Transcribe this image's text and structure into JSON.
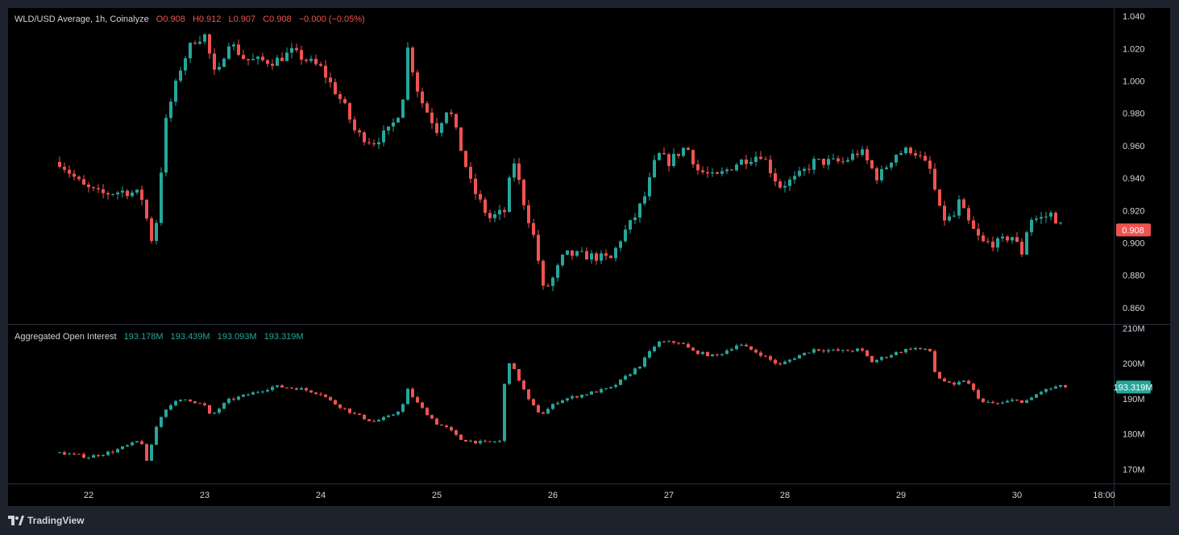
{
  "header": {
    "title": "WLD/USD Average, 1h, Coinalyze",
    "open": "O0.908",
    "high": "H0.912",
    "low": "L0.907",
    "close": "C0.908",
    "change": "−0.000 (−0.05%)"
  },
  "oi_header": {
    "title": "Aggregated Open Interest",
    "values": [
      "193.178M",
      "193.439M",
      "193.093M",
      "193.319M"
    ]
  },
  "price_badge": "0.908",
  "oi_badge": "193.319M",
  "branding": "TradingView",
  "colors": {
    "up": "#26a69a",
    "down": "#ef5350",
    "background": "#000000",
    "frame": "#1e222d"
  },
  "chart_data": [
    {
      "type": "candlestick",
      "title": "WLD/USD Average, 1h, Coinalyze",
      "ylim": [
        0.85,
        1.045
      ],
      "y_ticks": [
        "1.040",
        "1.020",
        "1.000",
        "0.980",
        "0.960",
        "0.940",
        "0.920",
        "0.900",
        "0.880",
        "0.860"
      ],
      "x_tick_labels": [
        "22",
        "23",
        "24",
        "25",
        "26",
        "27",
        "28",
        "29",
        "30",
        "18:00"
      ],
      "last_value": 0.908,
      "close_path": [
        [
          21.75,
          0.95
        ],
        [
          21.95,
          0.935
        ],
        [
          22.1,
          0.93
        ],
        [
          22.3,
          0.932
        ],
        [
          22.45,
          0.93
        ],
        [
          22.5,
          0.915
        ],
        [
          22.55,
          0.9
        ],
        [
          22.6,
          0.92
        ],
        [
          22.65,
          0.97
        ],
        [
          22.7,
          0.985
        ],
        [
          22.8,
          1.01
        ],
        [
          22.9,
          1.025
        ],
        [
          23.0,
          1.028
        ],
        [
          23.1,
          1.0
        ],
        [
          23.2,
          1.025
        ],
        [
          23.35,
          1.013
        ],
        [
          23.6,
          1.012
        ],
        [
          23.75,
          1.018
        ],
        [
          24.0,
          1.008
        ],
        [
          24.2,
          0.985
        ],
        [
          24.3,
          0.968
        ],
        [
          24.45,
          0.962
        ],
        [
          24.6,
          0.97
        ],
        [
          24.7,
          0.985
        ],
        [
          24.75,
          1.02
        ],
        [
          24.85,
          0.99
        ],
        [
          25.0,
          0.97
        ],
        [
          25.1,
          0.985
        ],
        [
          25.2,
          0.96
        ],
        [
          25.3,
          0.935
        ],
        [
          25.45,
          0.915
        ],
        [
          25.6,
          0.92
        ],
        [
          25.65,
          0.955
        ],
        [
          25.75,
          0.925
        ],
        [
          25.85,
          0.9
        ],
        [
          25.92,
          0.87
        ],
        [
          26.0,
          0.878
        ],
        [
          26.1,
          0.893
        ],
        [
          26.3,
          0.892
        ],
        [
          26.5,
          0.89
        ],
        [
          26.6,
          0.905
        ],
        [
          26.7,
          0.915
        ],
        [
          26.8,
          0.93
        ],
        [
          26.9,
          0.955
        ],
        [
          27.0,
          0.95
        ],
        [
          27.15,
          0.96
        ],
        [
          27.25,
          0.945
        ],
        [
          27.4,
          0.94
        ],
        [
          27.6,
          0.95
        ],
        [
          27.8,
          0.955
        ],
        [
          27.95,
          0.935
        ],
        [
          28.1,
          0.94
        ],
        [
          28.25,
          0.95
        ],
        [
          28.5,
          0.95
        ],
        [
          28.65,
          0.957
        ],
        [
          28.8,
          0.94
        ],
        [
          28.95,
          0.955
        ],
        [
          29.1,
          0.958
        ],
        [
          29.25,
          0.945
        ],
        [
          29.35,
          0.915
        ],
        [
          29.45,
          0.915
        ],
        [
          29.5,
          0.925
        ],
        [
          29.6,
          0.91
        ],
        [
          29.7,
          0.9
        ],
        [
          29.85,
          0.9
        ],
        [
          29.95,
          0.905
        ],
        [
          30.05,
          0.893
        ],
        [
          30.1,
          0.915
        ],
        [
          30.2,
          0.915
        ],
        [
          30.3,
          0.918
        ],
        [
          30.4,
          0.908
        ]
      ]
    },
    {
      "type": "candlestick",
      "title": "Aggregated Open Interest",
      "ylim": [
        166,
        211
      ],
      "y_ticks": [
        "210M",
        "200M",
        "190M",
        "180M",
        "170M"
      ],
      "last_value": 193.319,
      "close_path": [
        [
          21.75,
          174.7
        ],
        [
          22.0,
          173.5
        ],
        [
          22.2,
          175.0
        ],
        [
          22.4,
          177.5
        ],
        [
          22.45,
          178.5
        ],
        [
          22.5,
          172.0
        ],
        [
          22.6,
          184.0
        ],
        [
          22.7,
          188.5
        ],
        [
          22.85,
          190.0
        ],
        [
          23.0,
          188.0
        ],
        [
          23.05,
          185.0
        ],
        [
          23.2,
          189.5
        ],
        [
          23.4,
          191.5
        ],
        [
          23.6,
          193.5
        ],
        [
          23.8,
          193.0
        ],
        [
          24.0,
          191.5
        ],
        [
          24.1,
          189.0
        ],
        [
          24.3,
          185.5
        ],
        [
          24.45,
          183.5
        ],
        [
          24.6,
          185.0
        ],
        [
          24.7,
          187.5
        ],
        [
          24.75,
          192.5
        ],
        [
          24.85,
          188.0
        ],
        [
          25.0,
          183.0
        ],
        [
          25.1,
          181.5
        ],
        [
          25.2,
          178.5
        ],
        [
          25.4,
          177.5
        ],
        [
          25.55,
          178.0
        ],
        [
          25.6,
          202.0
        ],
        [
          25.7,
          196.0
        ],
        [
          25.8,
          189.0
        ],
        [
          25.9,
          185.5
        ],
        [
          26.05,
          189.5
        ],
        [
          26.3,
          191.5
        ],
        [
          26.5,
          193.0
        ],
        [
          26.6,
          195.5
        ],
        [
          26.75,
          199.5
        ],
        [
          26.9,
          206.0
        ],
        [
          27.1,
          206.0
        ],
        [
          27.2,
          203.5
        ],
        [
          27.4,
          202.0
        ],
        [
          27.6,
          205.5
        ],
        [
          27.8,
          202.5
        ],
        [
          27.95,
          199.5
        ],
        [
          28.1,
          202.0
        ],
        [
          28.25,
          204.0
        ],
        [
          28.5,
          203.5
        ],
        [
          28.65,
          204.0
        ],
        [
          28.75,
          200.5
        ],
        [
          28.95,
          203.0
        ],
        [
          29.1,
          204.5
        ],
        [
          29.25,
          203.5
        ],
        [
          29.3,
          196.5
        ],
        [
          29.45,
          193.5
        ],
        [
          29.55,
          195.5
        ],
        [
          29.7,
          189.0
        ],
        [
          29.85,
          188.5
        ],
        [
          30.0,
          190.0
        ],
        [
          30.05,
          188.5
        ],
        [
          30.2,
          192.0
        ],
        [
          30.35,
          193.5
        ],
        [
          30.45,
          193.3
        ]
      ]
    }
  ]
}
